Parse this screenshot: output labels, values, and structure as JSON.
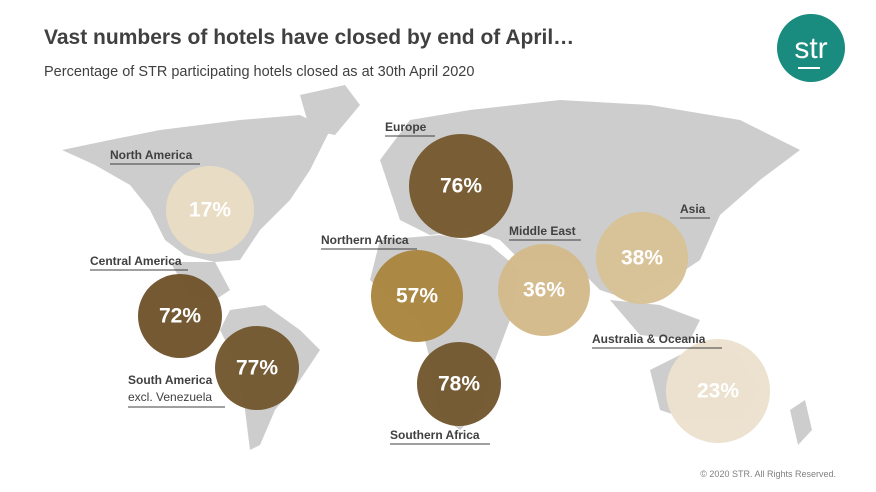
{
  "chart_data": {
    "type": "bubble-map",
    "title": "Vast numbers of hotels have closed by end of April…",
    "subtitle": "Percentage of STR participating hotels closed as at 30th April 2020",
    "categories": [
      "North America",
      "Europe",
      "Northern Africa",
      "Middle East",
      "Asia",
      "Australia & Oceania",
      "Central America",
      "South America",
      "Southern Africa"
    ],
    "values": [
      17,
      76,
      57,
      36,
      38,
      23,
      72,
      77,
      78
    ],
    "value_labels": [
      "17%",
      "76%",
      "57%",
      "36%",
      "38%",
      "23%",
      "72%",
      "77%",
      "78%"
    ],
    "colors": [
      "#e8dcc3",
      "#76592f",
      "#a9853f",
      "#d3ba8b",
      "#d8c196",
      "#ebe1cd",
      "#6f542c",
      "#735830",
      "#735830"
    ],
    "annotations": [
      "excl. Venezuela"
    ],
    "logo": "str",
    "copyright": "© 2020 STR. All Rights Reserved."
  }
}
